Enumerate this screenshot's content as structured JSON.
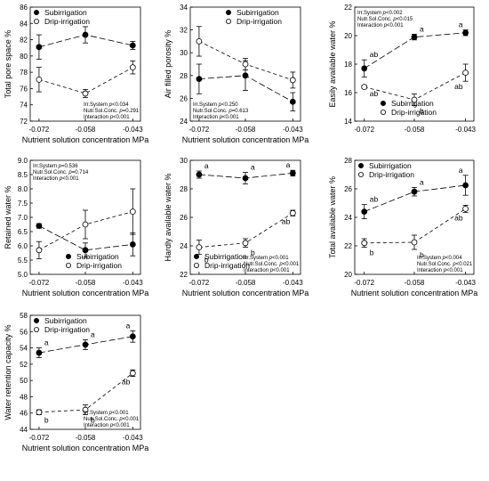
{
  "chart_data": [
    {
      "type": "line",
      "x": [
        "-0.072",
        "-0.058",
        "-0.043"
      ],
      "xlabel": "Nutrient solution concentration MPa",
      "ylabel": "Total pore space %",
      "ylim": [
        72,
        86
      ],
      "yticks": [
        72,
        74,
        76,
        78,
        80,
        82,
        84,
        86
      ],
      "legend": "top-left",
      "series": [
        {
          "name": "Subirrigation",
          "marker": "filled",
          "values": [
            81.1,
            82.6,
            81.3
          ],
          "errors": [
            1.5,
            1.0,
            0.5
          ]
        },
        {
          "name": "Drip-irrigation",
          "marker": "open",
          "values": [
            77.1,
            75.4,
            78.6
          ],
          "errors": [
            1.5,
            0.5,
            0.8
          ]
        }
      ],
      "stats": [
        {
          "label": "Irr.System",
          "value": "p<0.034"
        },
        {
          "label": "Nutr.Sol.Conc.",
          "value": "p=0.291"
        },
        {
          "label": "Interaction",
          "value": "p<0.001"
        }
      ],
      "stats_position": "bottom-right"
    },
    {
      "type": "line",
      "x": [
        "-0.072",
        "-0.058",
        "-0.043"
      ],
      "xlabel": "Nutrient solution concentration MPa",
      "ylabel": "Air filled porosity %",
      "ylim": [
        24,
        34
      ],
      "yticks": [
        24,
        26,
        28,
        30,
        32,
        34
      ],
      "legend": "top-right",
      "series": [
        {
          "name": "Subirrigation",
          "marker": "filled",
          "values": [
            27.7,
            28.0,
            25.7
          ],
          "errors": [
            1.3,
            1.3,
            0.8
          ]
        },
        {
          "name": "Drip-irrigation",
          "marker": "open",
          "values": [
            31.0,
            29.0,
            27.6
          ],
          "errors": [
            1.3,
            0.5,
            0.7
          ]
        }
      ],
      "stats": [
        {
          "label": "Irr.System",
          "value": "p<0.250"
        },
        {
          "label": "Nutr.Sol.Conc.",
          "value": "p=0.613"
        },
        {
          "label": "Interaction",
          "value": "p<0.001"
        }
      ],
      "stats_position": "bottom-left"
    },
    {
      "type": "line",
      "x": [
        "-0.072",
        "-0.058",
        "-0.043"
      ],
      "xlabel": "",
      "ylabel": "Easily available water %",
      "ylim": [
        14,
        22
      ],
      "yticks": [
        14,
        16,
        18,
        20,
        22
      ],
      "legend": "bottom-center",
      "series": [
        {
          "name": "Subirrigation",
          "marker": "filled",
          "values": [
            17.7,
            19.9,
            20.2
          ],
          "errors": [
            0.6,
            0.2,
            0.2
          ],
          "labels": [
            "ab",
            "a",
            "a"
          ]
        },
        {
          "name": "Drip-irrigation",
          "marker": "open",
          "values": [
            16.4,
            15.5,
            17.4
          ],
          "errors": [
            0.1,
            0.4,
            0.6
          ],
          "labels": [
            "ab",
            "b",
            "ab"
          ]
        }
      ],
      "stats": [
        {
          "label": "Irr.System",
          "value": "p<0.002"
        },
        {
          "label": "Nutr.Sol.Conc.",
          "value": "p<0.015"
        },
        {
          "label": "Interaction",
          "value": "p<0.001"
        }
      ],
      "stats_position": "top-left"
    },
    {
      "type": "line",
      "x": [
        "-0.072",
        "-0.058",
        "-0.043"
      ],
      "xlabel": "Nutrient solution concentration MPa",
      "ylabel": "Retained water %",
      "ylim": [
        5.0,
        9.0
      ],
      "yticks": [
        5.0,
        5.5,
        6.0,
        6.5,
        7.0,
        7.5,
        8.0,
        8.5,
        9.0
      ],
      "legend": "bottom-right",
      "series": [
        {
          "name": "Subirrigation",
          "marker": "filled",
          "values": [
            6.7,
            5.85,
            6.05
          ],
          "errors": [
            0.08,
            0.25,
            0.4
          ]
        },
        {
          "name": "Drip-irrigation",
          "marker": "open",
          "values": [
            5.85,
            6.75,
            7.2
          ],
          "errors": [
            0.3,
            0.5,
            0.8
          ]
        }
      ],
      "stats": [
        {
          "label": "Irr.System",
          "value": "p=0.536"
        },
        {
          "label": "Nutr.Sol.Conc.",
          "value": "p=0.714"
        },
        {
          "label": "Interaction",
          "value": "p<0.001"
        }
      ],
      "stats_position": "top-left"
    },
    {
      "type": "line",
      "x": [
        "-0.072",
        "-0.058",
        "-0.043"
      ],
      "xlabel": "Nutrient solution concentration MPa",
      "ylabel": "Hardly available water %",
      "ylim": [
        22,
        30
      ],
      "yticks": [
        22,
        24,
        26,
        28,
        30
      ],
      "legend": "bottom-left",
      "series": [
        {
          "name": "Subirrigation",
          "marker": "filled",
          "values": [
            29.0,
            28.75,
            29.1
          ],
          "errors": [
            0.25,
            0.4,
            0.2
          ],
          "labels": [
            "a",
            "a",
            "a"
          ]
        },
        {
          "name": "Drip-irrigation",
          "marker": "open",
          "values": [
            23.9,
            24.2,
            26.3
          ],
          "errors": [
            0.5,
            0.3,
            0.2
          ],
          "labels": [
            "b",
            "b",
            "ab"
          ]
        }
      ],
      "stats": [
        {
          "label": "Irr.System",
          "value": "p<0.001"
        },
        {
          "label": "Nutr.Sol.Conc.",
          "value": "p<0.001"
        },
        {
          "label": "Interaction",
          "value": "p<0.001"
        }
      ],
      "stats_position": "bottom-right"
    },
    {
      "type": "line",
      "x": [
        "-0.072",
        "-0.058",
        "-0.043"
      ],
      "xlabel": "Nutrient solution concentration MPa",
      "ylabel": "Total available water %",
      "ylim": [
        20,
        28
      ],
      "yticks": [
        20,
        22,
        24,
        26,
        28
      ],
      "legend": "top-left",
      "series": [
        {
          "name": "Subirrigation",
          "marker": "filled",
          "values": [
            24.4,
            25.8,
            26.25
          ],
          "errors": [
            0.5,
            0.3,
            0.7
          ],
          "labels": [
            "ab",
            "a",
            "a"
          ]
        },
        {
          "name": "Drip-irrigation",
          "marker": "open",
          "values": [
            22.2,
            22.25,
            24.6
          ],
          "errors": [
            0.3,
            0.5,
            0.25
          ],
          "labels": [
            "b",
            "b",
            "ab"
          ]
        }
      ],
      "stats": [
        {
          "label": "Irr.System",
          "value": "p<0.004"
        },
        {
          "label": "Nutr.Sol.Conc.",
          "value": "p<0.021"
        },
        {
          "label": "Interaction",
          "value": "p<0.001"
        }
      ],
      "stats_position": "bottom-right"
    },
    {
      "type": "line",
      "x": [
        "-0.072",
        "-0.058",
        "-0.043"
      ],
      "xlabel": "Nutrient solution concentration MPa",
      "ylabel": "Water retention capacity %",
      "ylim": [
        44,
        58
      ],
      "yticks": [
        44,
        46,
        48,
        50,
        52,
        54,
        56,
        58
      ],
      "legend": "top-left",
      "series": [
        {
          "name": "Subirrigation",
          "marker": "filled",
          "values": [
            53.4,
            54.4,
            55.4
          ],
          "errors": [
            0.6,
            0.6,
            0.7
          ],
          "labels": [
            "a",
            "a",
            "a"
          ]
        },
        {
          "name": "Drip-irrigation",
          "marker": "open",
          "values": [
            46.1,
            46.4,
            50.9
          ],
          "errors": [
            0.3,
            0.6,
            0.4
          ],
          "labels": [
            "b",
            "b",
            "ab"
          ]
        }
      ],
      "stats": [
        {
          "label": "Irr.System",
          "value": "p<0.001"
        },
        {
          "label": "Nutr.Sol.Conc.",
          "value": "p<0.001"
        },
        {
          "label": "Interaction",
          "value": "p<0.001"
        }
      ],
      "stats_position": "bottom-right"
    }
  ]
}
